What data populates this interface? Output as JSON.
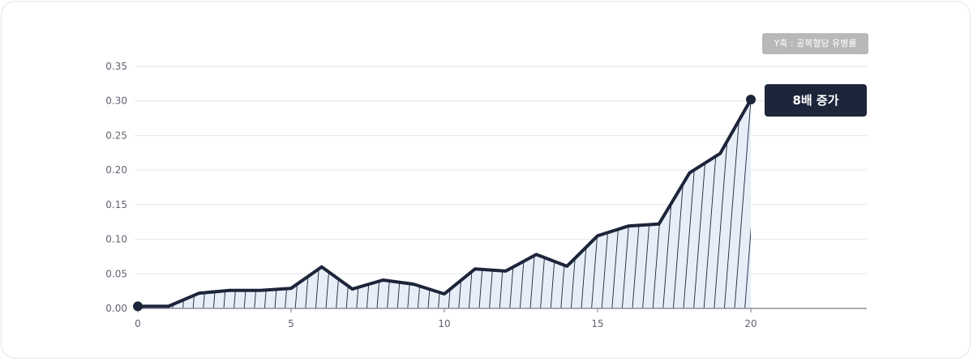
{
  "chart_data": {
    "type": "area",
    "y_axis_badge": "Y축 : 공복혈당 유병률",
    "callout": "8배 증가",
    "x": [
      0,
      1,
      2,
      3,
      4,
      5,
      6,
      7,
      8,
      9,
      10,
      11,
      12,
      13,
      14,
      15,
      16,
      17,
      18,
      19,
      20
    ],
    "values": [
      0.003,
      0.003,
      0.022,
      0.026,
      0.026,
      0.029,
      0.06,
      0.028,
      0.041,
      0.035,
      0.021,
      0.057,
      0.054,
      0.078,
      0.061,
      0.105,
      0.119,
      0.122,
      0.196,
      0.224,
      0.302
    ],
    "xlim": [
      0,
      24
    ],
    "ylim": [
      0,
      0.35
    ],
    "x_ticks": [
      "0",
      "5",
      "10",
      "15",
      "20"
    ],
    "x_tick_values": [
      0,
      5,
      10,
      15,
      20
    ],
    "y_ticks": [
      "0.00",
      "0.05",
      "0.10",
      "0.15",
      "0.20",
      "0.25",
      "0.30",
      "0.35"
    ],
    "y_tick_values": [
      0,
      0.05,
      0.1,
      0.15,
      0.2,
      0.25,
      0.3,
      0.35
    ],
    "grid": true,
    "colors": {
      "line": "#1c2539",
      "fill": "#e8eef7",
      "hatch": "#1c2539",
      "grid": "#e4e6ea",
      "badge": "#b8b8bb"
    }
  }
}
